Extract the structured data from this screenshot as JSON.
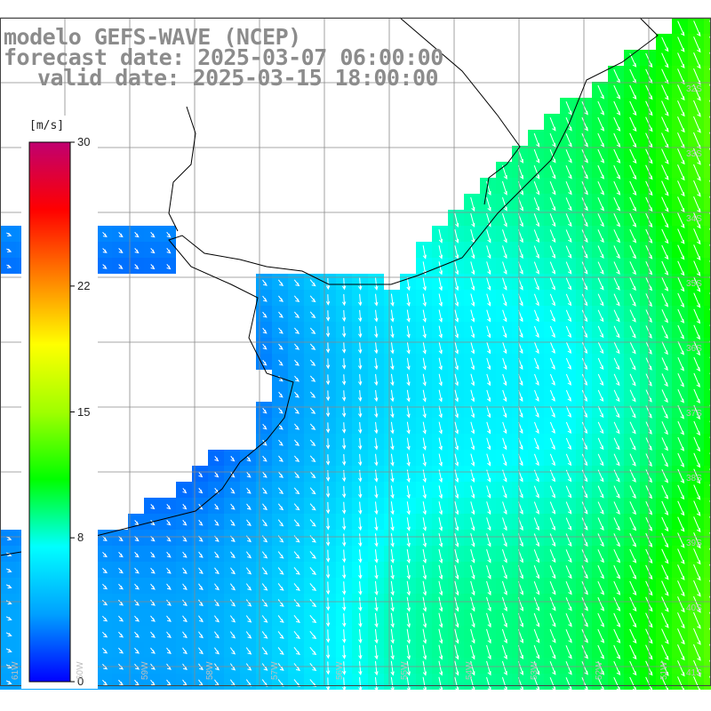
{
  "title": {
    "line1": "modelo GEFS-WAVE (NCEP)",
    "line2": "forecast date: 2025-03-07 06:00:00",
    "line3": "valid date: 2025-03-15 18:00:00"
  },
  "colorbar": {
    "unit": "[m/s]",
    "ticks": [
      "30",
      "22",
      "15",
      "8",
      "0"
    ],
    "tick_values": [
      30,
      22,
      15,
      8,
      0
    ],
    "min": 0,
    "max": 30,
    "colors": [
      "#0000ff",
      "#00a0ff",
      "#00ffff",
      "#00ff00",
      "#a0ff00",
      "#ffff00",
      "#ff8000",
      "#ff0000",
      "#c00070"
    ]
  },
  "map": {
    "field": "wind speed with direction arrows",
    "land_color": "#ffffff",
    "grid_color": "#8a8a8a",
    "arrow_color": "#ffffff",
    "lat_labels": [
      "32S",
      "33S",
      "34S",
      "35S",
      "36S",
      "37S",
      "38S",
      "39S",
      "40S",
      "41S"
    ],
    "lon_labels": [
      "61W",
      "60W",
      "59W",
      "58W",
      "57W",
      "56W",
      "55W",
      "54W",
      "53W",
      "52W",
      "51W"
    ]
  }
}
